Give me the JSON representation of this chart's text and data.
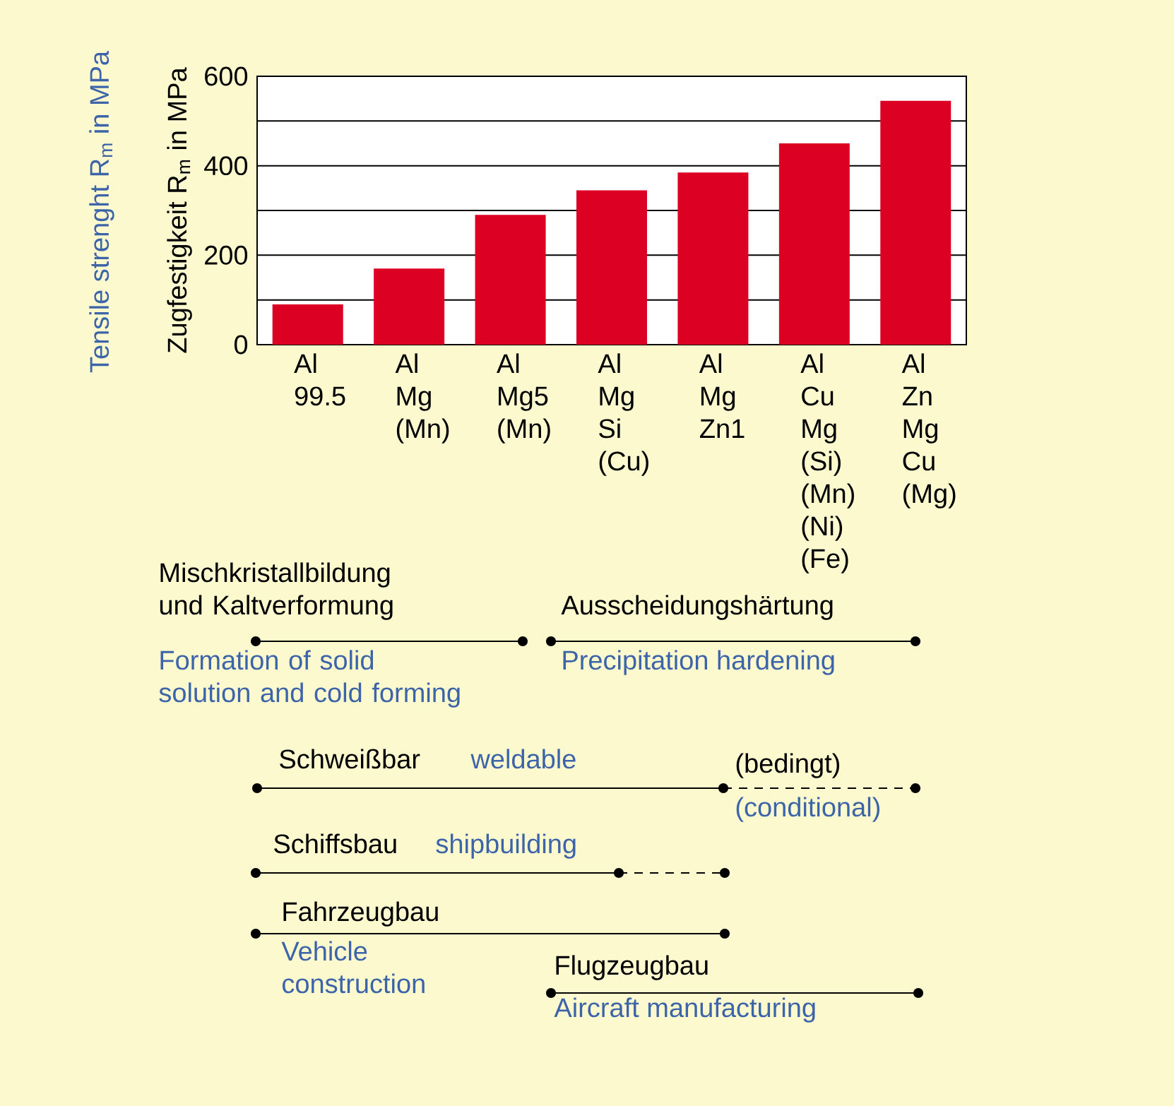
{
  "chart_data": {
    "type": "bar",
    "categories": [
      "Al 99.5",
      "Al Mg (Mn)",
      "Al Mg5 (Mn)",
      "Al Mg Si (Cu)",
      "Al Mg Zn1",
      "Al Cu Mg (Si) (Mn) (Ni) (Fe)",
      "Al Zn Mg Cu (Mg)"
    ],
    "values": [
      90,
      170,
      290,
      345,
      385,
      450,
      545
    ],
    "color": "#dc0023",
    "ylabel": "Zugfestigkeit R$_{m}$ in MPa",
    "ylim": [
      0,
      600
    ],
    "yticks": [
      0,
      {
        "value": 100,
        "label": null
      },
      200,
      {
        "value": 300,
        "label": null
      },
      400,
      {
        "value": 500,
        "label": null
      },
      600
    ],
    "grid": "y",
    "annotations": [
      "Tensile strenght R$_{m}$ in MPa",
      "Mischkristallbildung und Kaltverformung",
      "Formation of solid solution and cold forming",
      "Ausscheidungshärtung",
      "Precipitation hardening",
      "Schweißbar",
      "weldable",
      "(bedingt)",
      "(conditional)",
      "Schiffsbau",
      "shipbuilding",
      "Fahrzeugbau",
      "Vehicle construction",
      "Flugzeugbau",
      "Aircraft manufacturing"
    ]
  }
}
